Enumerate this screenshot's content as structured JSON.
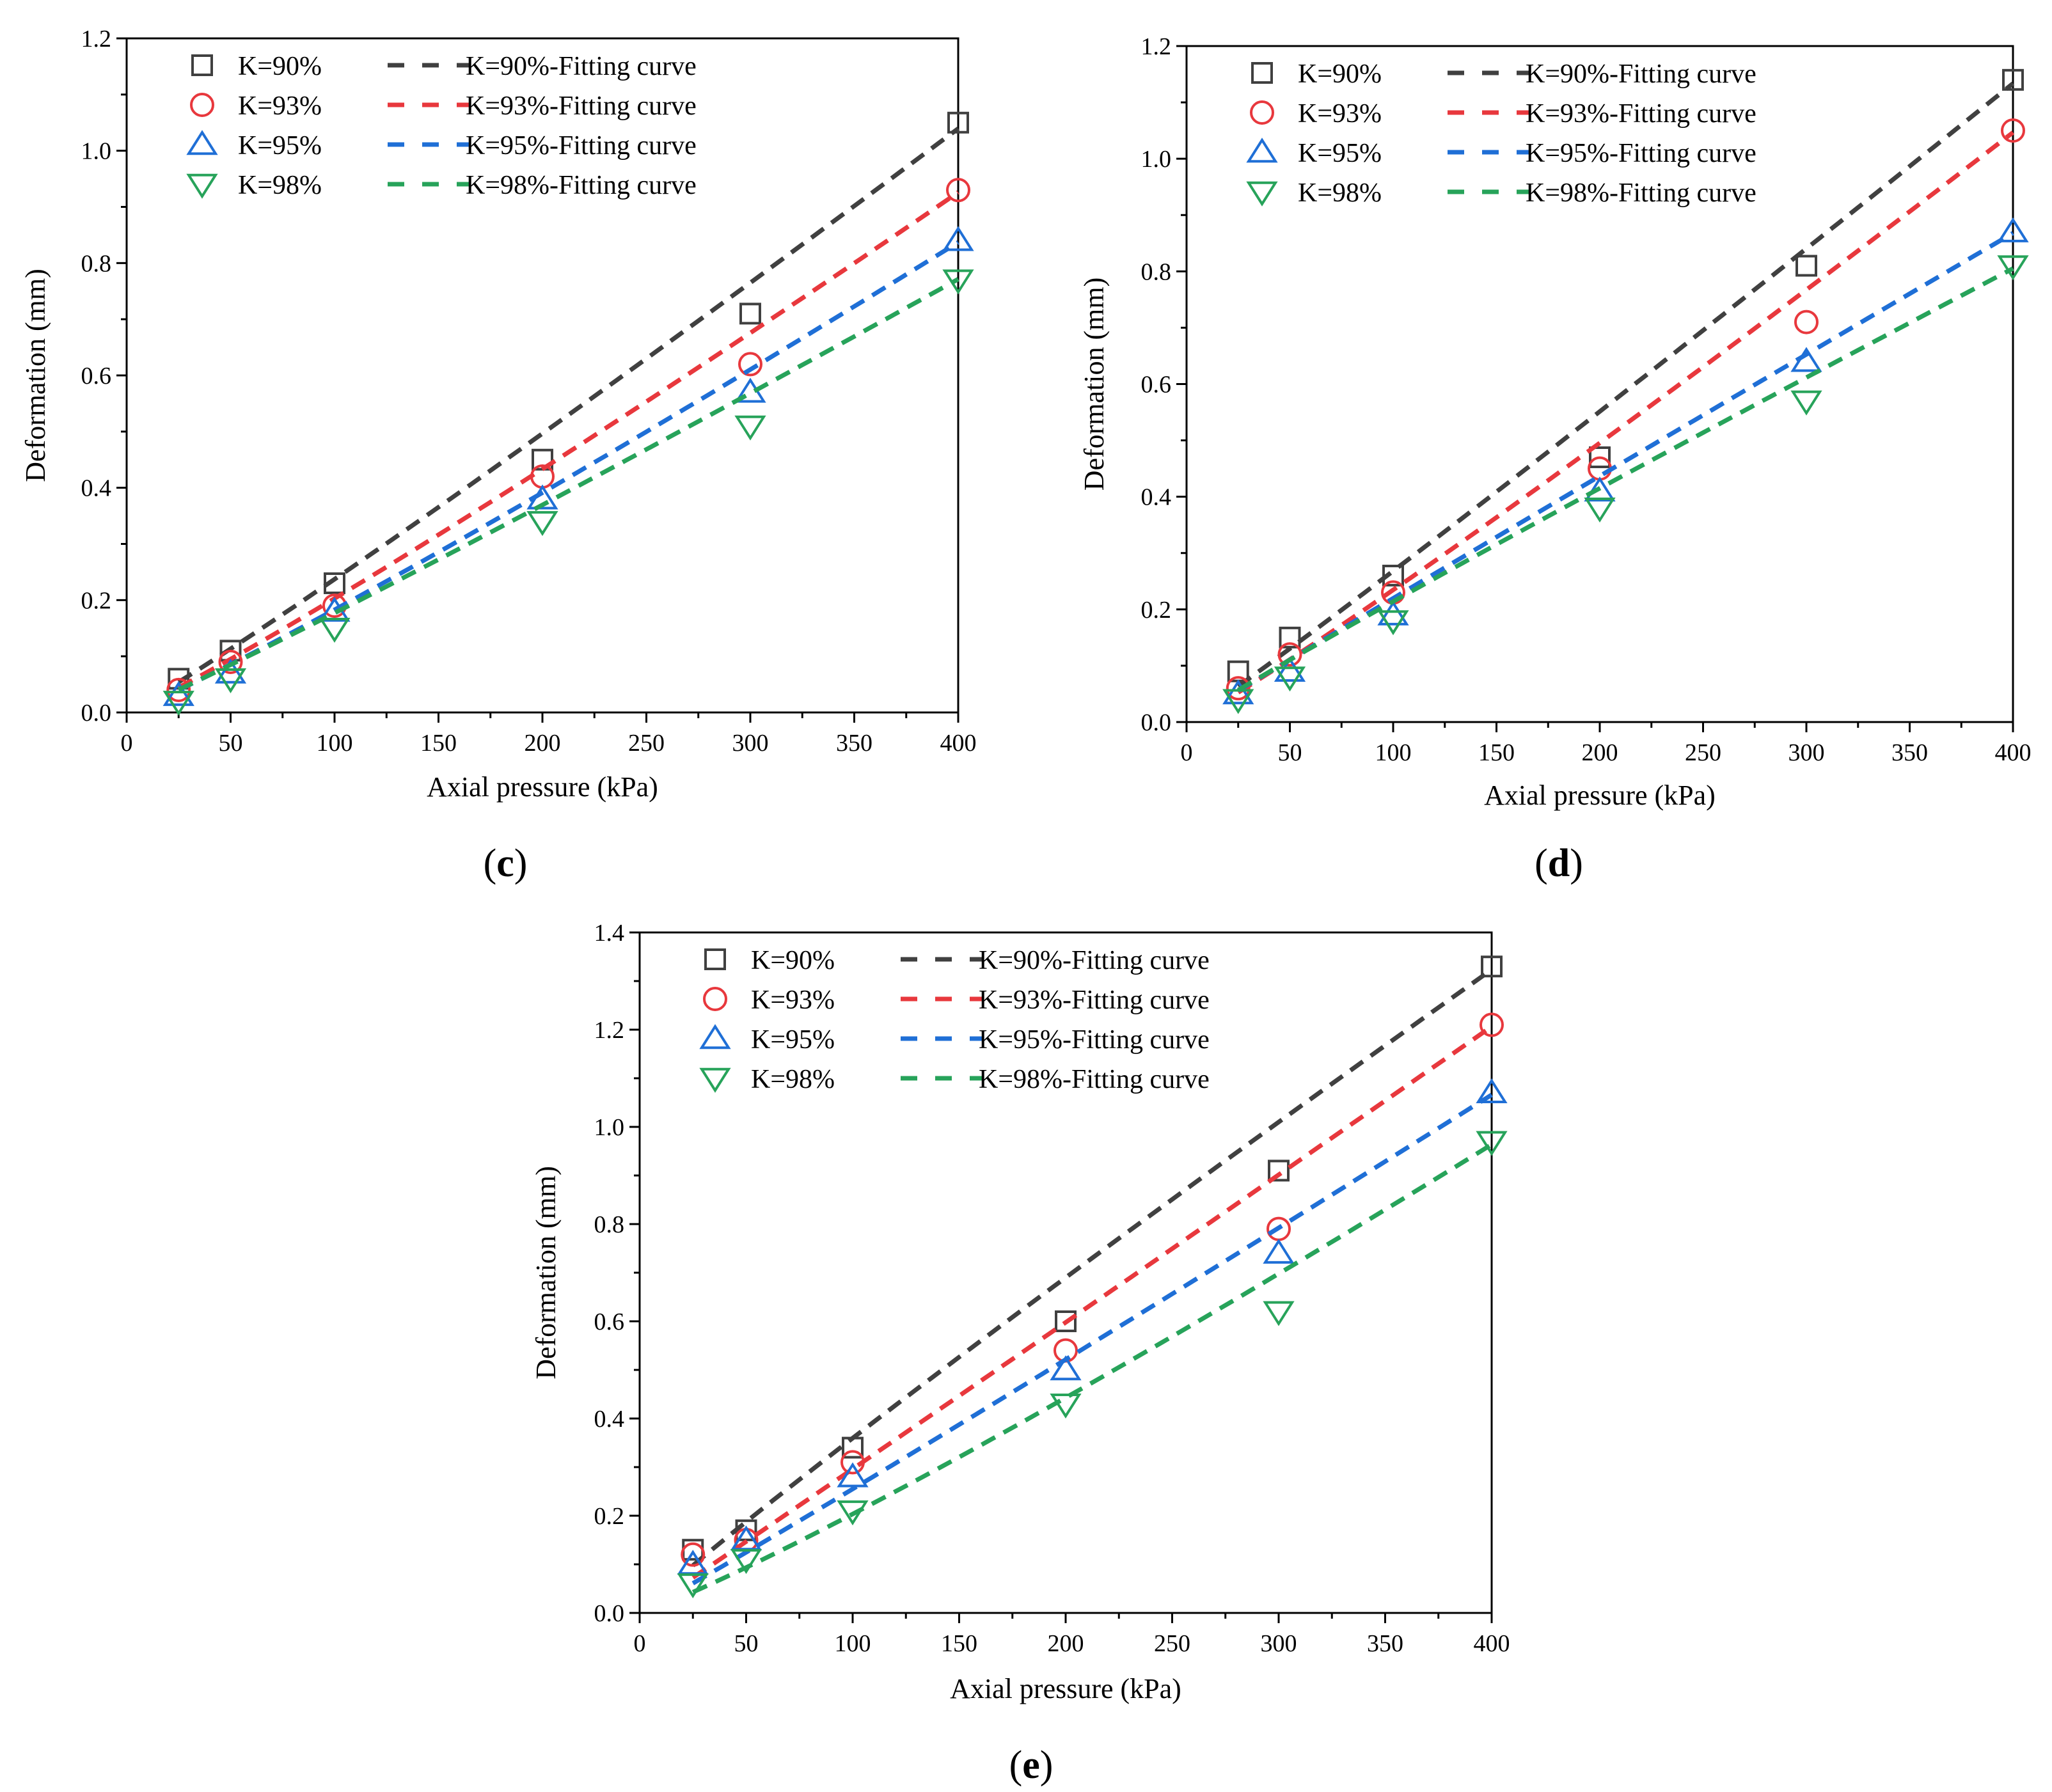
{
  "colors": {
    "k90": "#404040",
    "k93": "#e8383d",
    "k95": "#1f6fd6",
    "k98": "#27a35a"
  },
  "chart_data": [
    {
      "panel": "c",
      "type": "scatter",
      "xlabel": "Axial pressure (kPa)",
      "ylabel": "Deformation (mm)",
      "xlim": [
        0,
        400
      ],
      "ylim": [
        0,
        1.2
      ],
      "xticks": [
        "0",
        "50",
        "100",
        "150",
        "200",
        "250",
        "300",
        "350",
        "400"
      ],
      "yticks": [
        "0.0",
        "0.2",
        "0.4",
        "0.6",
        "0.8",
        "1.0",
        "1.2"
      ],
      "legend_position": "top-left",
      "x": [
        25,
        50,
        100,
        200,
        300,
        400
      ],
      "series": [
        {
          "name": "K=90%",
          "fit_name": "K=90%-Fitting curve",
          "marker": "square",
          "color_key": "k90",
          "values": [
            0.06,
            0.11,
            0.23,
            0.45,
            0.71,
            1.05
          ],
          "fit": {
            "a": 0.00175,
            "b": 1.066
          }
        },
        {
          "name": "K=93%",
          "fit_name": "K=93%-Fitting curve",
          "marker": "circle",
          "color_key": "k93",
          "values": [
            0.04,
            0.09,
            0.19,
            0.42,
            0.62,
            0.93
          ],
          "fit": {
            "a": 0.00131,
            "b": 1.095
          }
        },
        {
          "name": "K=95%",
          "fit_name": "K=95%-Fitting curve",
          "marker": "triangle-up",
          "color_key": "k95",
          "values": [
            0.03,
            0.07,
            0.18,
            0.38,
            0.57,
            0.84
          ],
          "fit": {
            "a": 0.00117,
            "b": 1.097
          }
        },
        {
          "name": "K=98%",
          "fit_name": "K=98%-Fitting curve",
          "marker": "triangle-down",
          "color_key": "k98",
          "values": [
            0.02,
            0.06,
            0.15,
            0.34,
            0.51,
            0.77
          ],
          "fit": {
            "a": 0.00133,
            "b": 1.062
          }
        }
      ]
    },
    {
      "panel": "d",
      "type": "scatter",
      "xlabel": "Axial pressure (kPa)",
      "ylabel": "Deformation (mm)",
      "xlim": [
        0,
        400
      ],
      "ylim": [
        0,
        1.2
      ],
      "xticks": [
        "0",
        "50",
        "100",
        "150",
        "200",
        "250",
        "300",
        "350",
        "400"
      ],
      "yticks": [
        "0.0",
        "0.2",
        "0.4",
        "0.6",
        "0.8",
        "1.0",
        "1.2"
      ],
      "legend_position": "top-left",
      "x": [
        25,
        50,
        100,
        200,
        300,
        400
      ],
      "series": [
        {
          "name": "K=90%",
          "fit_name": "K=90%-Fitting curve",
          "marker": "square",
          "color_key": "k90",
          "values": [
            0.09,
            0.15,
            0.26,
            0.47,
            0.81,
            1.14
          ],
          "fit": {
            "a": 0.00223,
            "b": 1.04
          }
        },
        {
          "name": "K=93%",
          "fit_name": "K=93%-Fitting curve",
          "marker": "circle",
          "color_key": "k93",
          "values": [
            0.06,
            0.12,
            0.23,
            0.45,
            0.71,
            1.05
          ],
          "fit": {
            "a": 0.00163,
            "b": 1.079
          }
        },
        {
          "name": "K=95%",
          "fit_name": "K=95%-Fitting curve",
          "marker": "triangle-up",
          "color_key": "k95",
          "values": [
            0.05,
            0.09,
            0.19,
            0.41,
            0.64,
            0.87
          ],
          "fit": {
            "a": 0.00229,
            "b": 0.991
          }
        },
        {
          "name": "K=98%",
          "fit_name": "K=98%-Fitting curve",
          "marker": "triangle-down",
          "color_key": "k98",
          "values": [
            0.04,
            0.08,
            0.18,
            0.38,
            0.57,
            0.81
          ],
          "fit": {
            "a": 0.00262,
            "b": 0.956
          }
        }
      ]
    },
    {
      "panel": "e",
      "type": "scatter",
      "xlabel": "Axial pressure (kPa)",
      "ylabel": "Deformation (mm)",
      "xlim": [
        0,
        400
      ],
      "ylim": [
        0,
        1.4
      ],
      "xticks": [
        "0",
        "50",
        "100",
        "150",
        "200",
        "250",
        "300",
        "350",
        "400"
      ],
      "yticks": [
        "0.0",
        "0.2",
        "0.4",
        "0.6",
        "0.8",
        "1.0",
        "1.2",
        "1.4"
      ],
      "legend_position": "top-left",
      "x": [
        25,
        50,
        100,
        200,
        300,
        400
      ],
      "series": [
        {
          "name": "K=90%",
          "fit_name": "K=90%-Fitting curve",
          "marker": "square",
          "color_key": "k90",
          "values": [
            0.13,
            0.17,
            0.34,
            0.6,
            0.91,
            1.33
          ],
          "fit": {
            "a": 0.00474,
            "b": 0.94
          }
        },
        {
          "name": "K=93%",
          "fit_name": "K=93%-Fitting curve",
          "marker": "circle",
          "color_key": "k93",
          "values": [
            0.12,
            0.15,
            0.31,
            0.54,
            0.79,
            1.21
          ],
          "fit": {
            "a": 0.00279,
            "b": 1.013
          }
        },
        {
          "name": "K=95%",
          "fit_name": "K=95%-Fitting curve",
          "marker": "triangle-up",
          "color_key": "k95",
          "values": [
            0.1,
            0.15,
            0.28,
            0.5,
            0.74,
            1.07
          ],
          "fit": {
            "a": 0.0022,
            "b": 1.032
          }
        },
        {
          "name": "K=98%",
          "fit_name": "K=98%-Fitting curve",
          "marker": "triangle-down",
          "color_key": "k98",
          "values": [
            0.06,
            0.11,
            0.21,
            0.43,
            0.62,
            0.97
          ],
          "fit": {
            "a": 0.00116,
            "b": 1.122
          }
        }
      ]
    }
  ],
  "panel_labels": [
    {
      "prefix": "(",
      "letter": "c",
      "suffix": ")"
    },
    {
      "prefix": "(",
      "letter": "d",
      "suffix": ")"
    },
    {
      "prefix": "(",
      "letter": "e",
      "suffix": ")"
    }
  ]
}
